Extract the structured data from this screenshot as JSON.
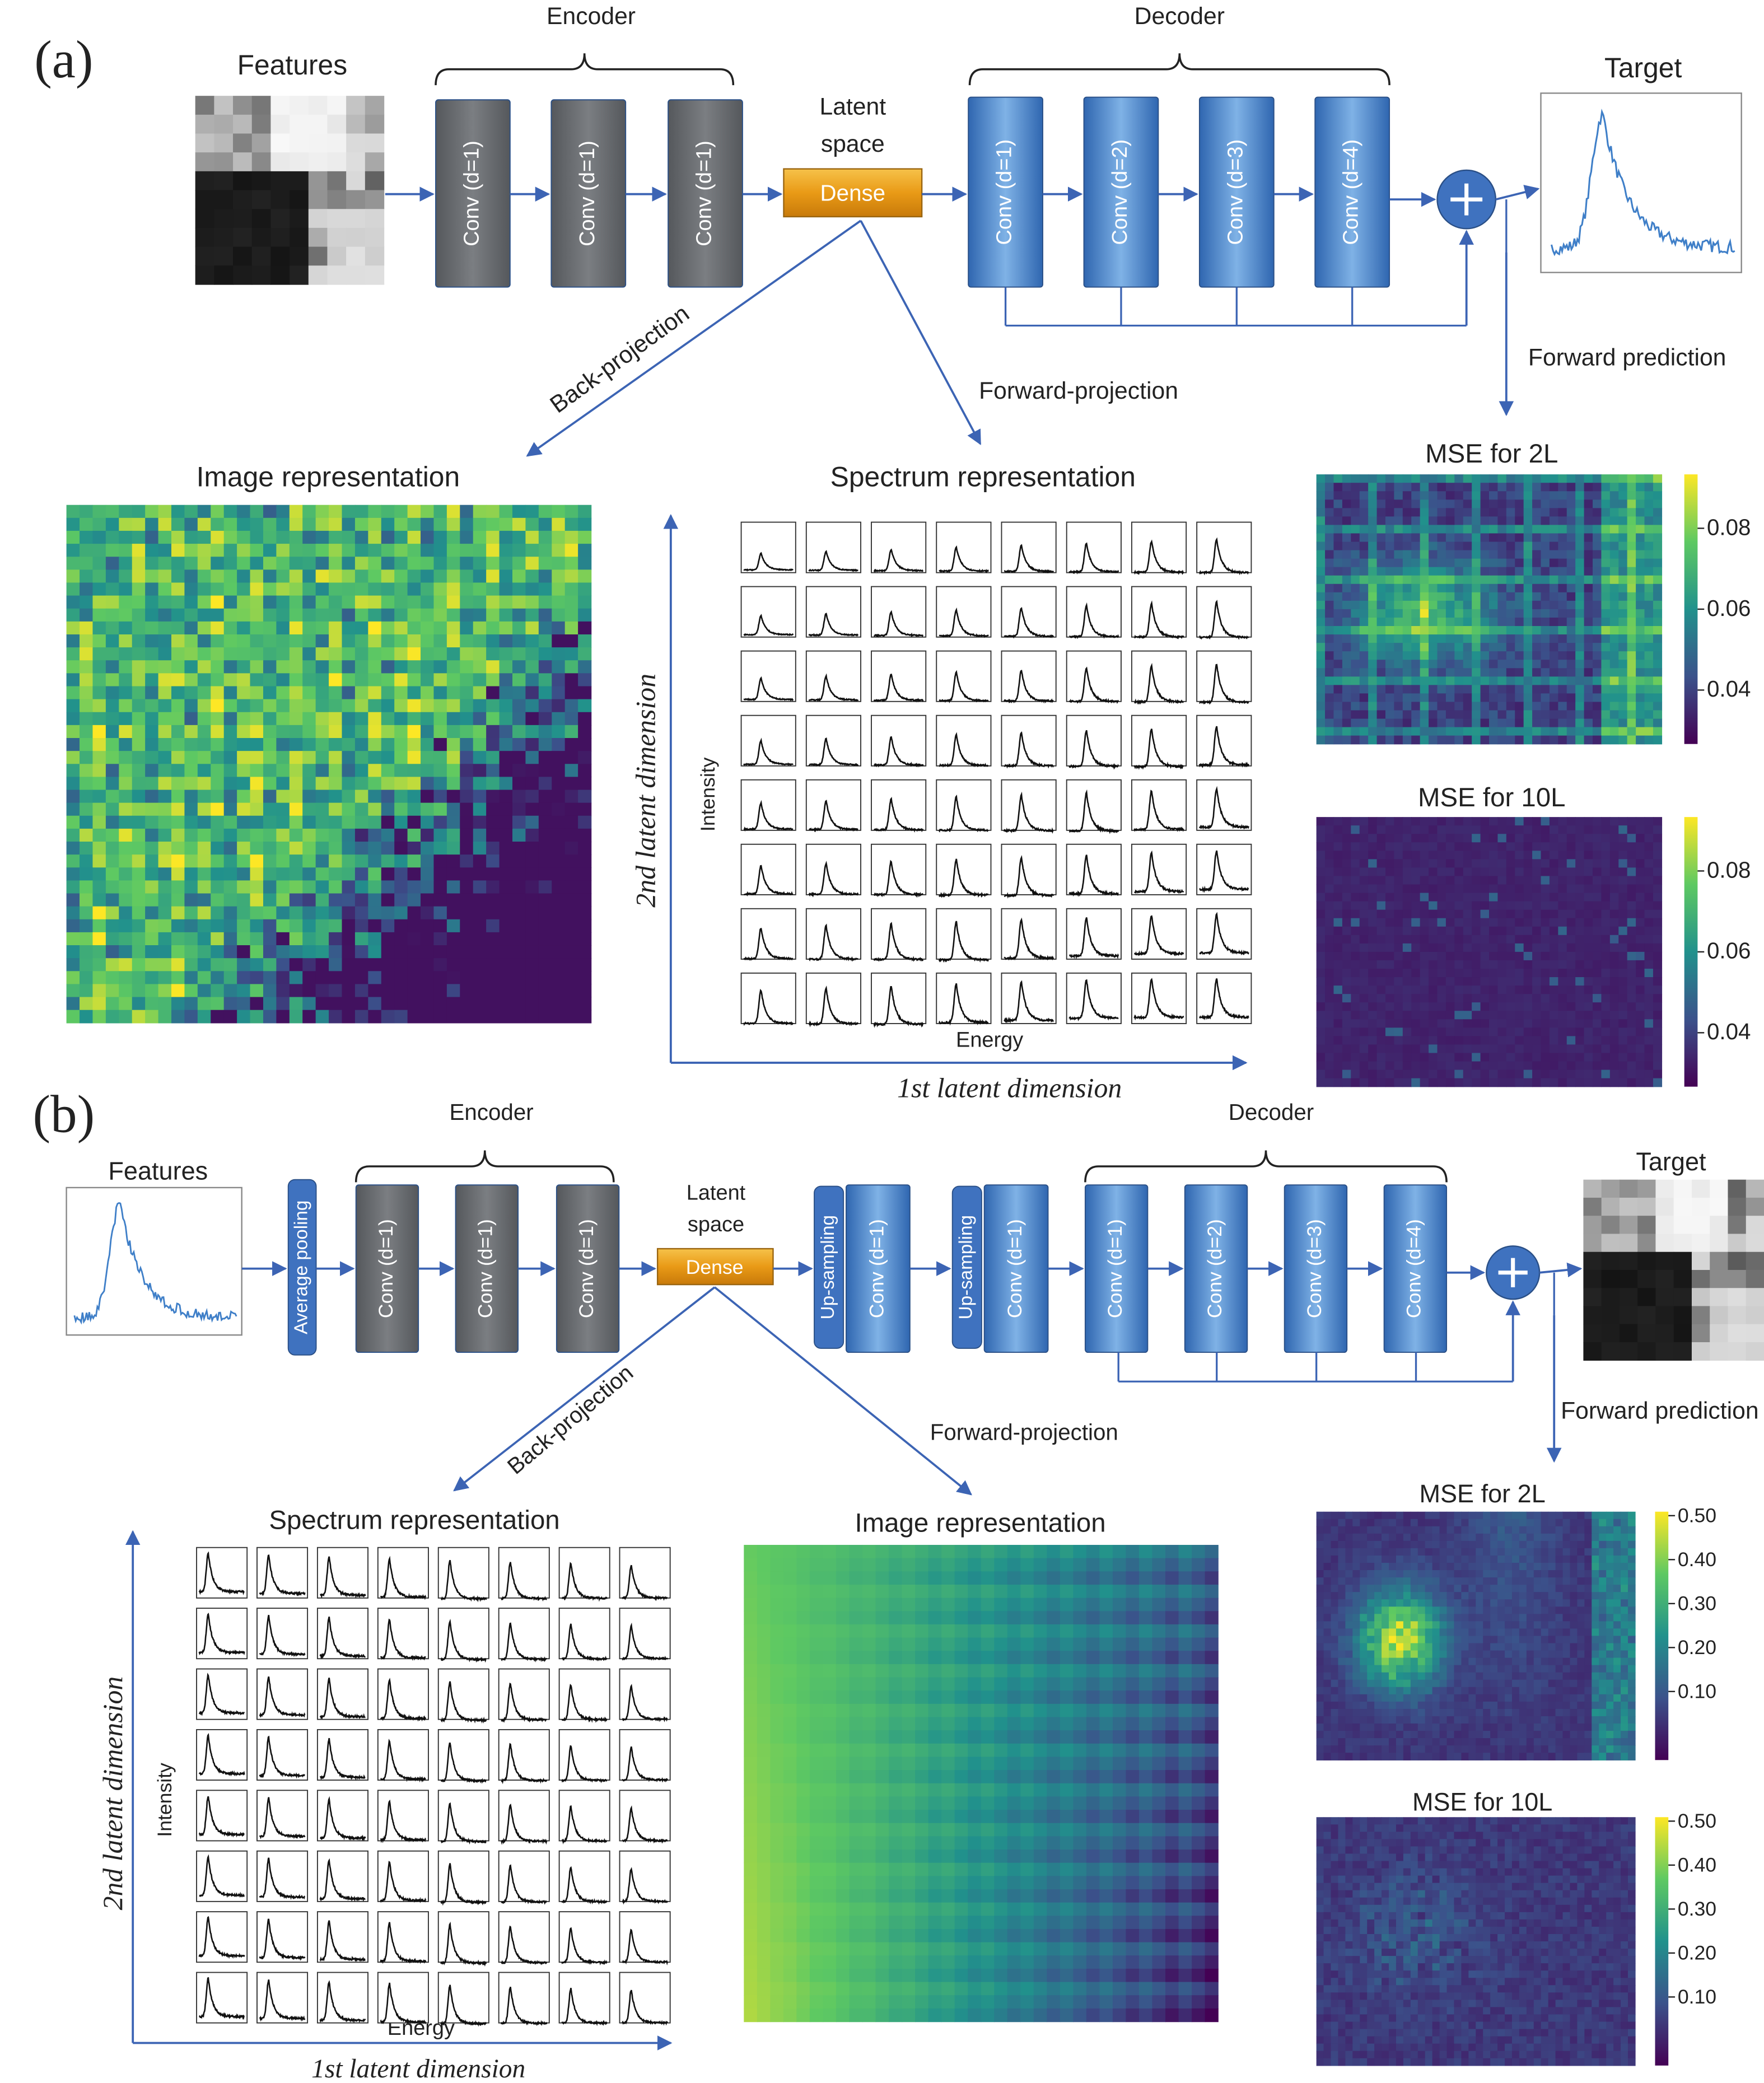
{
  "panel_a": {
    "label": "(a)",
    "encoder": "Encoder",
    "decoder": "Decoder",
    "features": "Features",
    "target": "Target",
    "latent_space": [
      "Latent",
      "space"
    ],
    "dense": "Dense",
    "encoder_blocks": [
      "Conv (d=1)",
      "Conv (d=1)",
      "Conv (d=1)"
    ],
    "decoder_blocks": [
      "Conv (d=1)",
      "Conv (d=2)",
      "Conv (d=3)",
      "Conv (d=4)"
    ],
    "back_projection": "Back-projection",
    "forward_projection": "Forward-projection",
    "forward_prediction": "Forward prediction",
    "image_representation": {
      "title": "Image representation"
    },
    "spectrum_representation": {
      "title": "Spectrum representation",
      "y_axis": "2nd latent dimension",
      "x_axis": "1st latent dimension",
      "inset_y": "Intensity",
      "inset_x": "Energy"
    },
    "mse_maps": [
      {
        "title": "MSE for 2L",
        "colorbar_ticks": [
          "0.08",
          "0.06",
          "0.04"
        ]
      },
      {
        "title": "MSE for 10L",
        "colorbar_ticks": [
          "0.08",
          "0.06",
          "0.04"
        ]
      }
    ]
  },
  "panel_b": {
    "label": "(b)",
    "encoder": "Encoder",
    "decoder": "Decoder",
    "features": "Features",
    "target": "Target",
    "average_pooling": "Average pooling",
    "latent_space": [
      "Latent",
      "space"
    ],
    "dense": "Dense",
    "encoder_blocks": [
      "Conv (d=1)",
      "Conv (d=1)",
      "Conv (d=1)"
    ],
    "upsampling_blocks": [
      {
        "label": "Up-sampling",
        "conv": "Conv (d=1)"
      },
      {
        "label": "Up-sampling",
        "conv": "Conv (d=1)"
      }
    ],
    "decoder_blocks": [
      "Conv (d=1)",
      "Conv (d=2)",
      "Conv (d=3)",
      "Conv (d=4)"
    ],
    "back_projection": "Back-projection",
    "forward_projection": "Forward-projection",
    "forward_prediction": "Forward prediction",
    "spectrum_representation": {
      "title": "Spectrum representation",
      "y_axis": "2nd latent dimension",
      "x_axis": "1st latent dimension",
      "inset_y": "Intensity",
      "inset_x": "Energy"
    },
    "image_representation": {
      "title": "Image representation"
    },
    "mse_maps": [
      {
        "title": "MSE for 2L",
        "colorbar_ticks": [
          "0.50",
          "0.40",
          "0.30",
          "0.20",
          "0.10"
        ]
      },
      {
        "title": "MSE for 10L",
        "colorbar_ticks": [
          "0.50",
          "0.40",
          "0.30",
          "0.20",
          "0.10"
        ]
      }
    ]
  }
}
